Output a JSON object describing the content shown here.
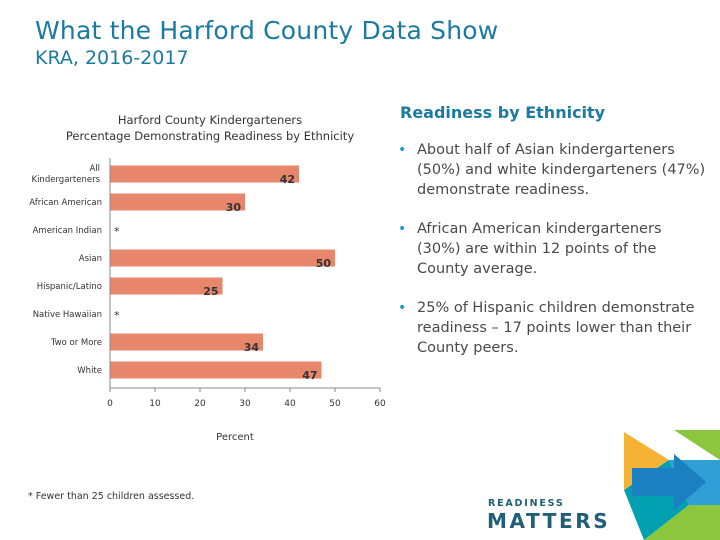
{
  "header": {
    "title": "What the Harford County Data Show",
    "subtitle": "KRA, 2016-2017"
  },
  "chart_data": {
    "type": "bar",
    "orientation": "horizontal",
    "title_line1": "Harford County Kindergarteners",
    "title_line2": "Percentage Demonstrating Readiness by Ethnicity",
    "xlabel": "Percent",
    "ylabel": "",
    "xlim": [
      0,
      60
    ],
    "xticks": [
      "0",
      "10",
      "20",
      "30",
      "40",
      "50",
      "60"
    ],
    "bar_color": "#e8866b",
    "categories": [
      {
        "label": "All Kindergarteners",
        "value": 42,
        "display": "42"
      },
      {
        "label": "African American",
        "value": 30,
        "display": "30"
      },
      {
        "label": "American Indian",
        "value": null,
        "display": "*"
      },
      {
        "label": "Asian",
        "value": 50,
        "display": "50"
      },
      {
        "label": "Hispanic/Latino",
        "value": 25,
        "display": "25"
      },
      {
        "label": "Native Hawaiian",
        "value": null,
        "display": "*"
      },
      {
        "label": "Two or More",
        "value": 34,
        "display": "34"
      },
      {
        "label": "White",
        "value": 47,
        "display": "47"
      }
    ],
    "grid": false,
    "legend": "none",
    "footnote": "* Fewer than 25 children assessed."
  },
  "side": {
    "title": "Readiness by Ethnicity",
    "bullets": [
      "About half of Asian kindergarteners (50%) and white kindergarteners (47%) demonstrate readiness.",
      "African American kindergarteners (30%) are within 12 points of the County average.",
      "25% of Hispanic children demonstrate readiness – 17 points lower than their County peers."
    ]
  },
  "logo": {
    "line1": "READINESS",
    "line2": "MATTERS",
    "colors": [
      "#2f9fd6",
      "#8cc63f",
      "#f5b335",
      "#1c7fbf",
      "#00a0b0"
    ]
  }
}
